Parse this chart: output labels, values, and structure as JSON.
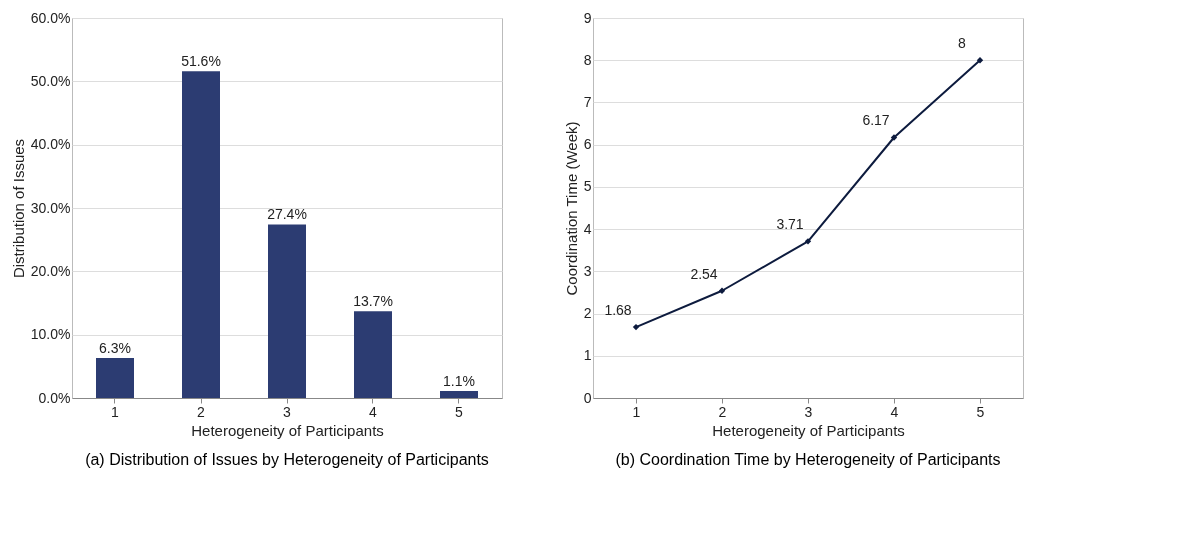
{
  "chart_data": [
    {
      "type": "bar",
      "title": "(a) Distribution of Issues by Heterogeneity of Participants",
      "xlabel": "Heterogeneity of Participants",
      "ylabel": "Distribution of Issues",
      "categories": [
        "1",
        "2",
        "3",
        "4",
        "5"
      ],
      "series": [
        {
          "color": "#2c3c72",
          "values": [
            6.3,
            51.6,
            27.4,
            13.7,
            1.1
          ],
          "value_labels": [
            "6.3%",
            "51.6%",
            "27.4%",
            "13.7%",
            "1.1%"
          ]
        }
      ],
      "ylim": [
        0,
        60
      ],
      "yticks": [
        {
          "value": 0,
          "label": "0.0%"
        },
        {
          "value": 10,
          "label": "10.0%"
        },
        {
          "value": 20,
          "label": "20.0%"
        },
        {
          "value": 30,
          "label": "30.0%"
        },
        {
          "value": 40,
          "label": "40.0%"
        },
        {
          "value": 50,
          "label": "50.0%"
        },
        {
          "value": 60,
          "label": "60.0%"
        }
      ],
      "grid": "y"
    },
    {
      "type": "line",
      "title": "(b) Coordination Time by Heterogeneity of Participants",
      "xlabel": "Heterogeneity of Participants",
      "ylabel": "Coordination Time (Week)",
      "categories": [
        "1",
        "2",
        "3",
        "4",
        "5"
      ],
      "series": [
        {
          "color": "#0d1b3e",
          "values": [
            1.68,
            2.54,
            3.71,
            6.17,
            8
          ]
        }
      ],
      "ylim": [
        0,
        9
      ],
      "yticks": [
        0,
        1,
        2,
        3,
        4,
        5,
        6,
        7,
        8,
        9
      ],
      "grid": "y",
      "marker": "diamond",
      "line_style": "solid",
      "data_labels": true
    }
  ]
}
